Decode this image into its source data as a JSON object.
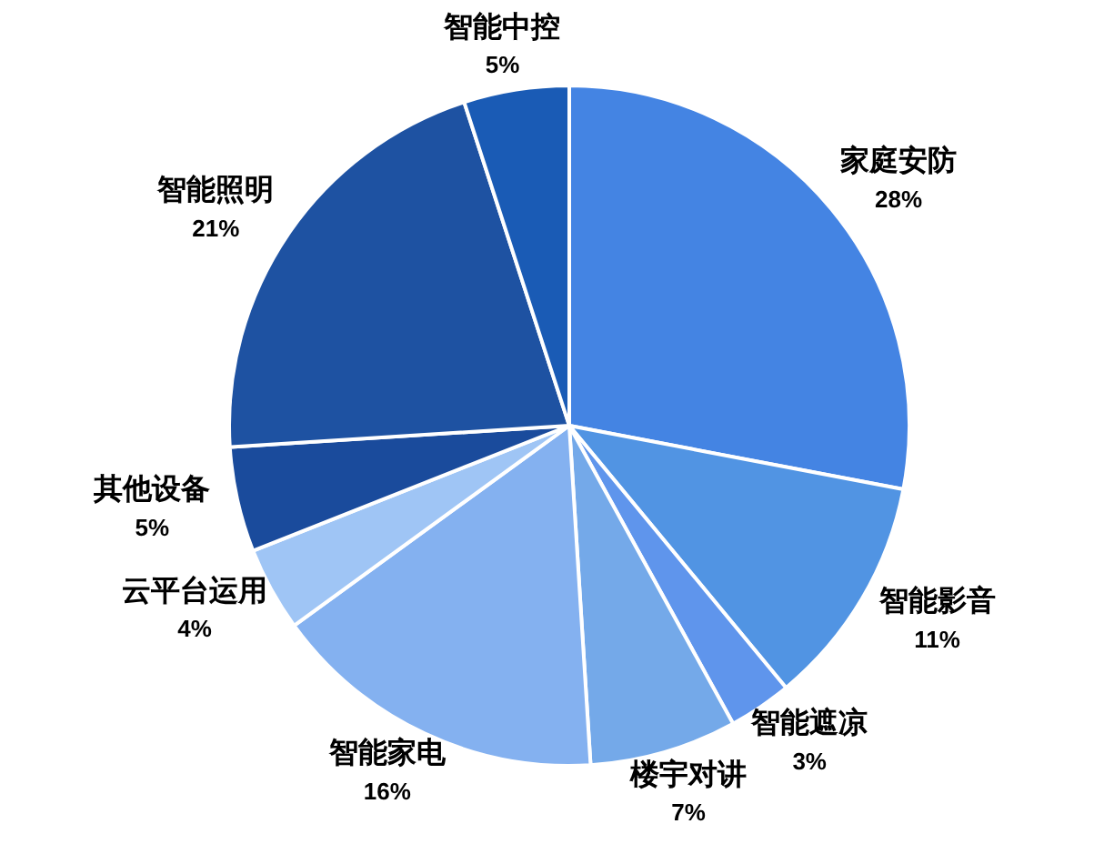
{
  "chart_data": {
    "type": "pie",
    "categories": [
      "家庭安防",
      "智能影音",
      "智能遮凉",
      "楼宇对讲",
      "智能家电",
      "云平台运用",
      "其他设备",
      "智能照明",
      "智能中控"
    ],
    "values": [
      28,
      11,
      3,
      7,
      16,
      4,
      5,
      21,
      5
    ],
    "colors": [
      "#4484e3",
      "#5194e3",
      "#5f95ec",
      "#74a9e9",
      "#84b1f0",
      "#9fc5f5",
      "#1a4b9c",
      "#1e52a2",
      "#1a5bb5"
    ],
    "value_labels": [
      "28%",
      "11%",
      "3%",
      "7%",
      "16%",
      "4%",
      "5%",
      "21%",
      "5%"
    ]
  }
}
